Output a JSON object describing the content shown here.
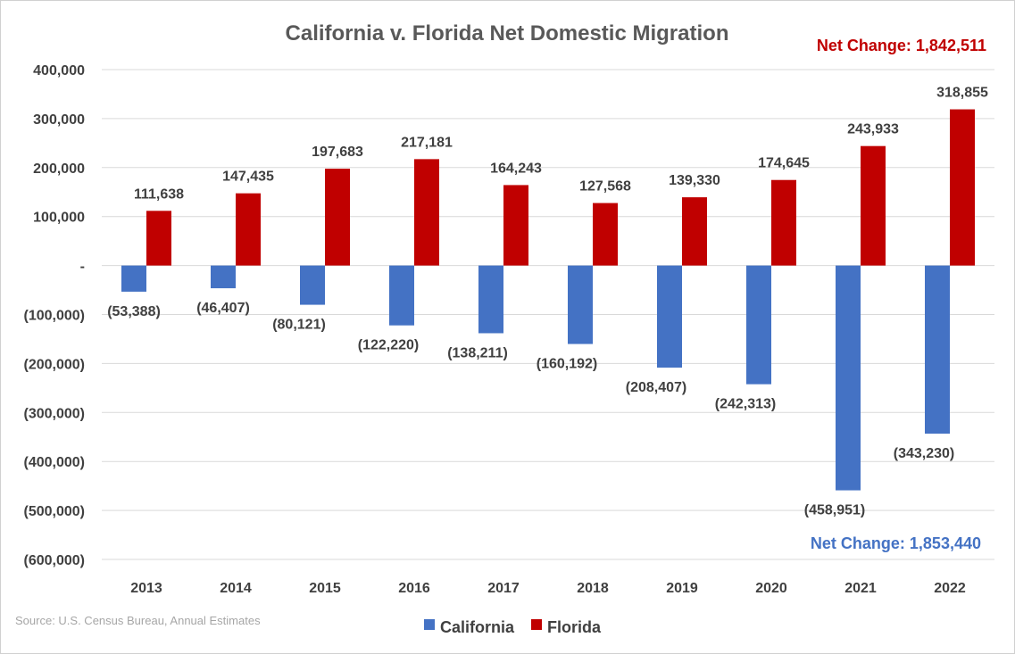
{
  "chart_data": {
    "type": "bar",
    "title": "California v. Florida Net Domestic Migration",
    "categories": [
      "2013",
      "2014",
      "2015",
      "2016",
      "2017",
      "2018",
      "2019",
      "2020",
      "2021",
      "2022"
    ],
    "series": [
      {
        "name": "California",
        "color": "#4472C4",
        "values": [
          -53388,
          -46407,
          -80121,
          -122220,
          -138211,
          -160192,
          -208407,
          -242313,
          -458951,
          -343230
        ],
        "labels": [
          "(53,388)",
          "(46,407)",
          "(80,121)",
          "(122,220)",
          "(138,211)",
          "(160,192)",
          "(208,407)",
          "(242,313)",
          "(458,951)",
          "(343,230)"
        ]
      },
      {
        "name": "Florida",
        "color": "#C00000",
        "values": [
          111638,
          147435,
          197683,
          217181,
          164243,
          127568,
          139330,
          174645,
          243933,
          318855
        ],
        "labels": [
          "111,638",
          "147,435",
          "197,683",
          "217,181",
          "164,243",
          "127,568",
          "139,330",
          "174,645",
          "243,933",
          "318,855"
        ]
      }
    ],
    "ylim": [
      -600000,
      400000
    ],
    "yticks": [
      400000,
      300000,
      200000,
      100000,
      0,
      -100000,
      -200000,
      -300000,
      -400000,
      -500000,
      -600000
    ],
    "ytick_labels": [
      "400,000",
      "300,000",
      "200,000",
      "100,000",
      "-",
      "(100,000)",
      "(200,000)",
      "(300,000)",
      "(400,000)",
      "(500,000)",
      "(600,000)"
    ],
    "grid": true,
    "legend_position": "bottom",
    "annotations": {
      "florida_net": "Net Change: 1,842,511",
      "california_net": "Net Change: 1,853,440"
    },
    "source": "Source: U.S. Census Bureau, Annual Estimates"
  }
}
